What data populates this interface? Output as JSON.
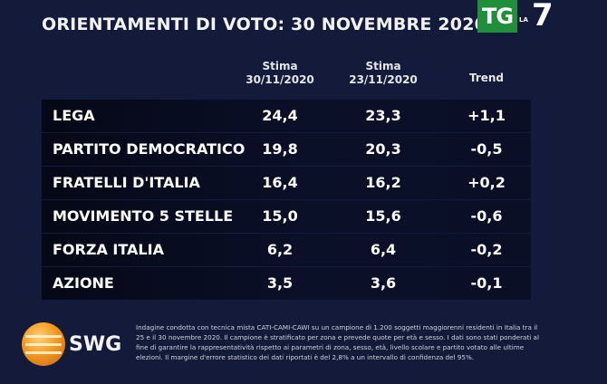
{
  "header": {
    "title": "ORIENTAMENTI DI VOTO: 30 NOVEMBRE 2020",
    "logo_tg": "TG",
    "logo_la": "LA",
    "logo_seven": "7"
  },
  "chart_data": {
    "type": "table",
    "title": "ORIENTAMENTI DI VOTO: 30 NOVEMBRE 2020",
    "columns": [
      {
        "line1": "Stima",
        "line2": "30/11/2020"
      },
      {
        "line1": "Stima",
        "line2": "23/11/2020"
      },
      {
        "line1": "Trend",
        "line2": ""
      }
    ],
    "rows": [
      {
        "party": "LEGA",
        "v1": "24,4",
        "v2": "23,3",
        "trend": "+1,1"
      },
      {
        "party": "PARTITO DEMOCRATICO",
        "v1": "19,8",
        "v2": "20,3",
        "trend": "-0,5"
      },
      {
        "party": "FRATELLI D'ITALIA",
        "v1": "16,4",
        "v2": "16,2",
        "trend": "+0,2"
      },
      {
        "party": "MOVIMENTO 5 STELLE",
        "v1": "15,0",
        "v2": "15,6",
        "trend": "-0,6"
      },
      {
        "party": "FORZA ITALIA",
        "v1": "6,2",
        "v2": "6,4",
        "trend": "-0,2"
      },
      {
        "party": "AZIONE",
        "v1": "3,5",
        "v2": "3,6",
        "trend": "-0,1"
      }
    ]
  },
  "footer": {
    "brand": "SWG",
    "note": "Indagine condotta con tecnica mista CATI-CAMI-CAWI su un campione di 1.200 soggetti maggiorenni residenti in Italia tra il 25 e il 30 novembre 2020. Il campione è stratificato per zona e prevede quote per età e sesso. I dati sono stati ponderati al fine di garantire la rappresentatività rispetto ai parametri di zona, sesso, età, livello scolare e partito votato alle ultime elezioni. Il margine d'errore statistico dei dati riportati è del 2,8% a un intervallo di confidenza del 95%."
  }
}
